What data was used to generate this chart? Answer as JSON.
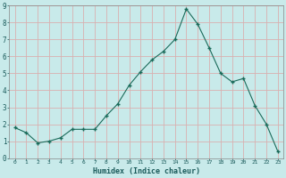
{
  "x": [
    0,
    1,
    2,
    3,
    4,
    5,
    6,
    7,
    8,
    9,
    10,
    11,
    12,
    13,
    14,
    15,
    16,
    17,
    18,
    19,
    20,
    21,
    22,
    23
  ],
  "y": [
    1.8,
    1.5,
    0.9,
    1.0,
    1.2,
    1.7,
    1.7,
    1.7,
    2.5,
    3.2,
    4.3,
    5.1,
    5.8,
    6.3,
    7.0,
    8.8,
    7.9,
    6.5,
    5.0,
    4.5,
    4.7,
    3.1,
    2.0,
    0.4
  ],
  "xlabel": "Humidex (Indice chaleur)",
  "ylabel": "",
  "title": "",
  "line_color": "#1a6b5a",
  "marker_color": "#1a6b5a",
  "bg_color": "#c8eaea",
  "grid_color": "#d9b0b0",
  "ylim": [
    0,
    9
  ],
  "xlim": [
    -0.5,
    23.5
  ],
  "yticks": [
    0,
    1,
    2,
    3,
    4,
    5,
    6,
    7,
    8,
    9
  ],
  "xticks": [
    0,
    1,
    2,
    3,
    4,
    5,
    6,
    7,
    8,
    9,
    10,
    11,
    12,
    13,
    14,
    15,
    16,
    17,
    18,
    19,
    20,
    21,
    22,
    23
  ]
}
